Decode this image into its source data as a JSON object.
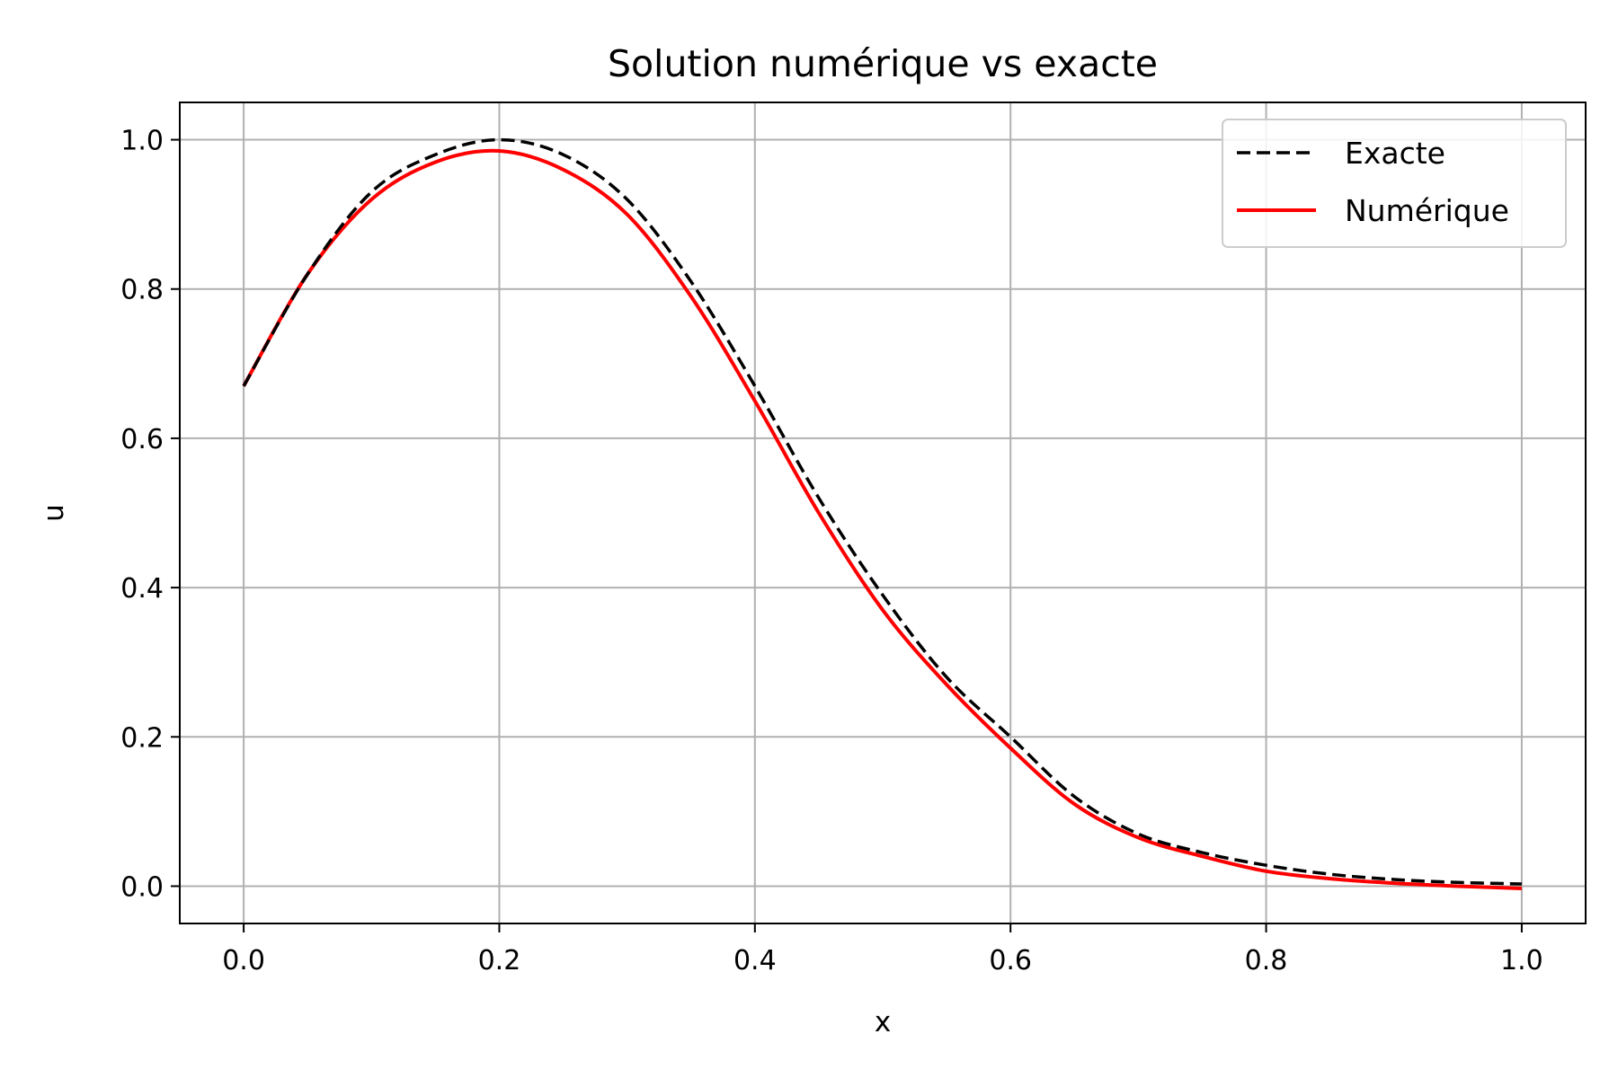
{
  "chart_data": {
    "type": "line",
    "title": "Solution numérique vs exacte",
    "xlabel": "x",
    "ylabel": "u",
    "xlim": [
      -0.05,
      1.05
    ],
    "ylim": [
      -0.05,
      1.05
    ],
    "xticks": [
      "0.0",
      "0.2",
      "0.4",
      "0.6",
      "0.8",
      "1.0"
    ],
    "yticks": [
      "0.0",
      "0.2",
      "0.4",
      "0.6",
      "0.8",
      "1.0"
    ],
    "grid": true,
    "legend_position": "top-right",
    "series": [
      {
        "name": "Exacte",
        "color": "#000000",
        "style": "dashed",
        "x": [
          0.0,
          0.05,
          0.1,
          0.15,
          0.2,
          0.25,
          0.3,
          0.35,
          0.4,
          0.45,
          0.5,
          0.55,
          0.6,
          0.65,
          0.7,
          0.75,
          0.8,
          0.85,
          0.9,
          0.95,
          1.0
        ],
        "y": [
          0.67,
          0.82,
          0.93,
          0.98,
          1.0,
          0.98,
          0.92,
          0.81,
          0.67,
          0.52,
          0.39,
          0.28,
          0.2,
          0.12,
          0.07,
          0.045,
          0.028,
          0.016,
          0.009,
          0.005,
          0.003
        ]
      },
      {
        "name": "Numérique",
        "color": "#ff0000",
        "style": "solid",
        "x": [
          0.0,
          0.05,
          0.1,
          0.15,
          0.2,
          0.25,
          0.3,
          0.35,
          0.4,
          0.45,
          0.5,
          0.55,
          0.6,
          0.65,
          0.7,
          0.75,
          0.8,
          0.85,
          0.9,
          0.95,
          1.0
        ],
        "y": [
          0.67,
          0.82,
          0.92,
          0.97,
          0.985,
          0.96,
          0.9,
          0.79,
          0.65,
          0.5,
          0.37,
          0.27,
          0.185,
          0.11,
          0.065,
          0.04,
          0.02,
          0.01,
          0.004,
          0.0,
          -0.003
        ]
      }
    ]
  }
}
